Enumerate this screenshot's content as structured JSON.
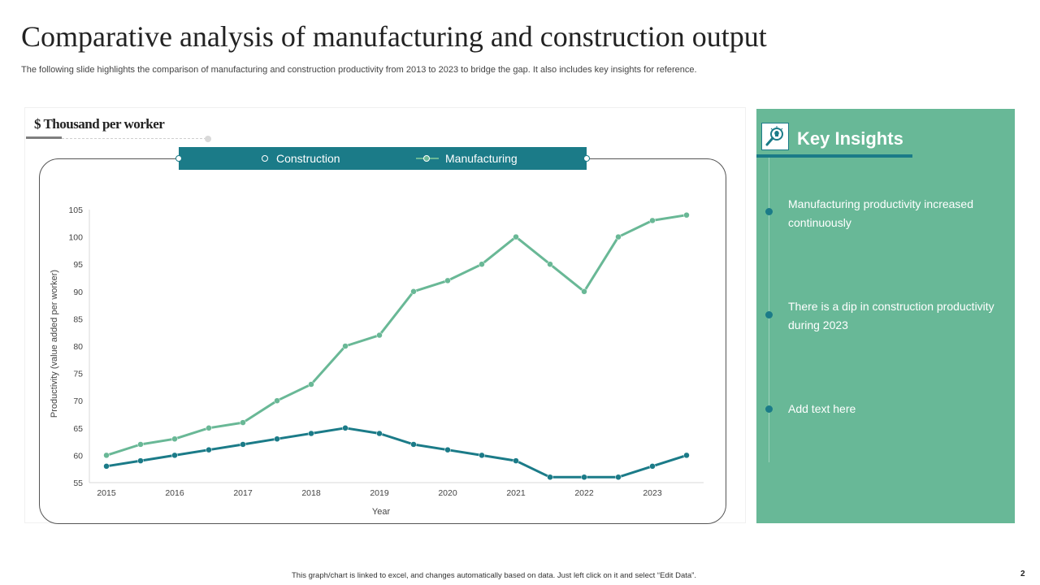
{
  "slide": {
    "title": "Comparative analysis of manufacturing and construction output",
    "subtitle": "The following slide highlights the comparison of manufacturing and construction productivity from 2013 to 2023 to bridge the gap. It also includes key insights for reference.",
    "unit_label": "$ Thousand per worker",
    "footer_note": "This graph/chart is linked to excel, and changes automatically based on data. Just left click on it and select “Edit Data”.",
    "page_number": "2"
  },
  "insights": {
    "icon": "magnifier-lightbulb-icon",
    "title": "Key Insights",
    "items": [
      "Manufacturing productivity increased continuously",
      "There is a dip in construction productivity during 2023",
      "Add text here"
    ]
  },
  "colors": {
    "construction": "#1b7b88",
    "manufacturing": "#69b896",
    "panel": "#68b897"
  },
  "chart_data": {
    "type": "line",
    "xlabel": "Year",
    "ylabel": "Productivity (value added per worker)",
    "ylim": [
      55,
      105
    ],
    "ytick_step": 5,
    "xticks": [
      "2015",
      "2016",
      "2017",
      "2018",
      "2019",
      "2020",
      "2021",
      "2022",
      "2023"
    ],
    "x": [
      2015,
      2015.5,
      2016,
      2016.5,
      2017,
      2017.5,
      2018,
      2018.5,
      2019,
      2019.5,
      2020,
      2020.5,
      2021,
      2021.5,
      2022,
      2022.5,
      2023,
      2023.5
    ],
    "xlim": [
      2014.75,
      2023.75
    ],
    "legend": [
      "Construction",
      "Manufacturing"
    ],
    "series": [
      {
        "name": "Construction",
        "values": [
          58,
          59,
          60,
          61,
          62,
          63,
          64,
          65,
          64,
          62,
          61,
          60,
          59,
          56,
          56,
          56,
          58,
          60
        ]
      },
      {
        "name": "Manufacturing",
        "values": [
          60,
          62,
          63,
          65,
          66,
          70,
          73,
          80,
          82,
          90,
          92,
          95,
          100,
          95,
          90,
          100,
          103,
          104
        ]
      }
    ]
  }
}
